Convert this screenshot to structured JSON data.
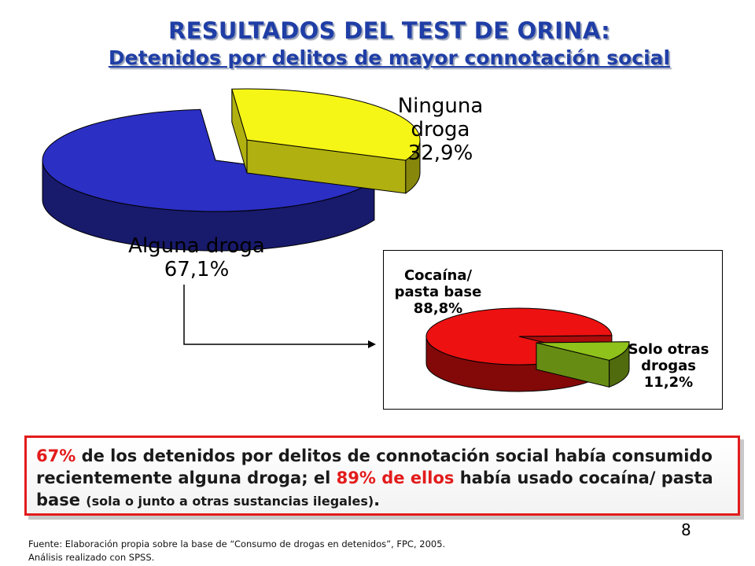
{
  "title": "RESULTADOS DEL TEST DE ORINA:",
  "subtitle": "Detenidos por delitos de mayor connotación social",
  "colors": {
    "title": "#1f3ea6",
    "alguna": "#2b2fc4",
    "ninguna": "#f5f516",
    "cocaina": "#ee1111",
    "otras": "#8fc21a",
    "accent": "#e31b1b"
  },
  "chart_data": [
    {
      "type": "pie",
      "series": [
        {
          "label_lines": [
            "Ninguna",
            "droga",
            "32,9%"
          ],
          "value": 32.9
        },
        {
          "label_lines": [
            "Alguna droga",
            "67,1%"
          ],
          "value": 67.1
        }
      ]
    },
    {
      "type": "pie",
      "series": [
        {
          "label_lines": [
            "Cocaína/",
            "pasta base",
            "88,8%"
          ],
          "value": 88.8
        },
        {
          "label_lines": [
            "Solo otras",
            "drogas",
            "11,2%"
          ],
          "value": 11.2
        }
      ]
    }
  ],
  "summary": {
    "pct1": "67%",
    "text1": " de los detenidos por delitos de connotación social había consumido recientemente alguna droga; el ",
    "pct2": "89% de ellos",
    "text2": " había usado cocaína/ pasta base ",
    "small": "(sola o junto a otras sustancias ilegales)",
    "end": "."
  },
  "page_number": "8",
  "source_lines": [
    "Fuente: Elaboración propia sobre la base de “Consumo de drogas en detenidos”, FPC, 2005.",
    "Análisis realizado con SPSS."
  ]
}
